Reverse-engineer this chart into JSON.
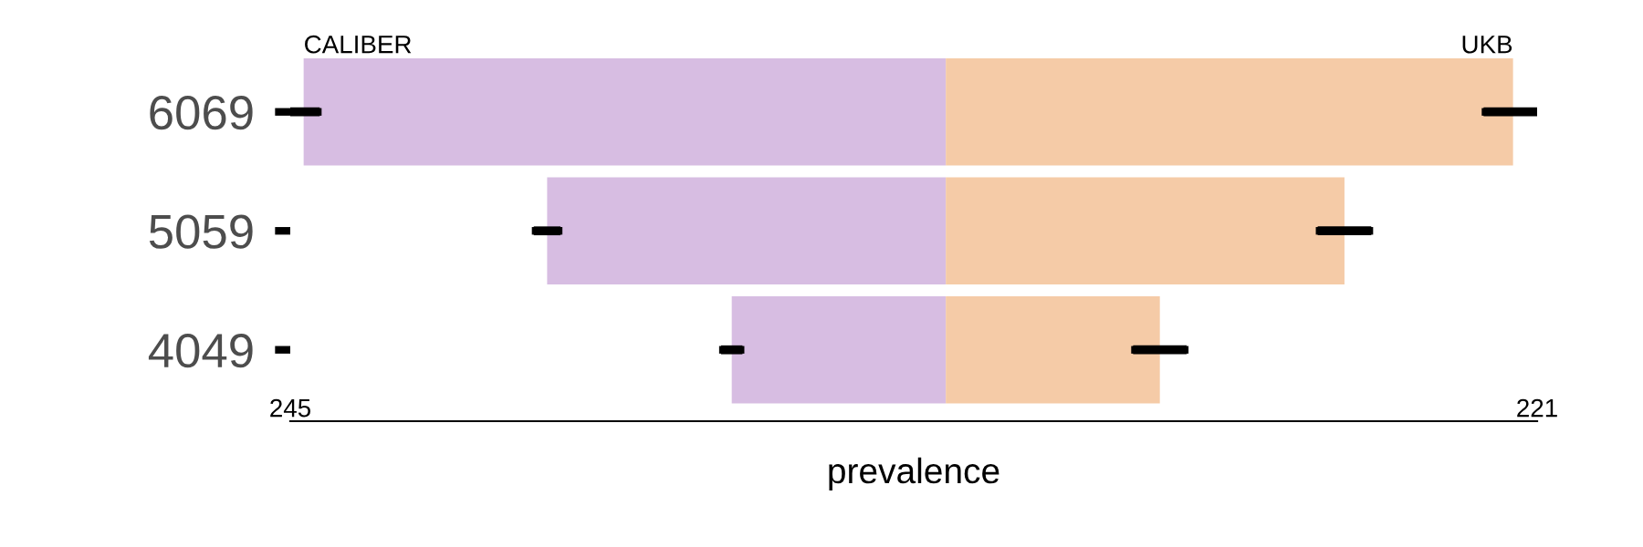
{
  "chart_data": {
    "type": "bar",
    "orientation": "horizontal",
    "stacked": true,
    "xlabel": "prevalence",
    "categories": [
      "6069",
      "5059",
      "4049"
    ],
    "series": [
      {
        "name": "CALIBER",
        "color": "#d7bde2",
        "values": [
          -240,
          -149,
          -80
        ],
        "errors": [
          6,
          5,
          4
        ]
      },
      {
        "name": "UKB",
        "color": "#f5cba7",
        "values": [
          212,
          149,
          80
        ],
        "errors": [
          11,
          10,
          10
        ]
      }
    ],
    "xlim": [
      -245,
      221
    ],
    "xticks": [
      {
        "value": -245,
        "label": "245"
      },
      {
        "value": 221,
        "label": "221"
      }
    ],
    "grid": false,
    "legend": false
  }
}
